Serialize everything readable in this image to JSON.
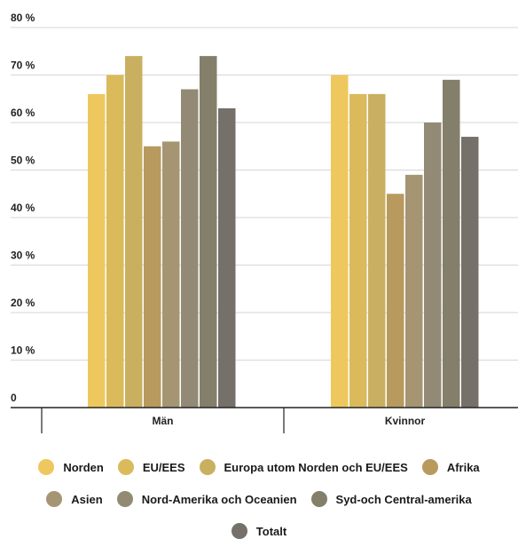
{
  "chart_data": {
    "type": "bar",
    "categories": [
      "Män",
      "Kvinnor"
    ],
    "series": [
      {
        "name": "Norden",
        "values": [
          66,
          70
        ],
        "color": "#EEC85E"
      },
      {
        "name": "EU/EES",
        "values": [
          70,
          66
        ],
        "color": "#DABA5A"
      },
      {
        "name": "Europa utom Norden och EU/EES",
        "values": [
          74,
          66
        ],
        "color": "#C9B060"
      },
      {
        "name": "Afrika",
        "values": [
          55,
          45
        ],
        "color": "#B89A5E"
      },
      {
        "name": "Asien",
        "values": [
          56,
          49
        ],
        "color": "#A59572"
      },
      {
        "name": "Nord-Amerika och Oceanien",
        "values": [
          67,
          60
        ],
        "color": "#928A74"
      },
      {
        "name": "Syd-och Central-amerika",
        "values": [
          74,
          69
        ],
        "color": "#837F6A"
      },
      {
        "name": "Totalt",
        "values": [
          63,
          57
        ],
        "color": "#75706A"
      }
    ],
    "ylim": [
      0,
      80
    ],
    "yticks": [
      "0",
      "10 %",
      "20 %",
      "30 %",
      "40 %",
      "50 %",
      "60 %",
      "70 %",
      "80 %"
    ],
    "grid": true,
    "legend_position": "bottom"
  }
}
